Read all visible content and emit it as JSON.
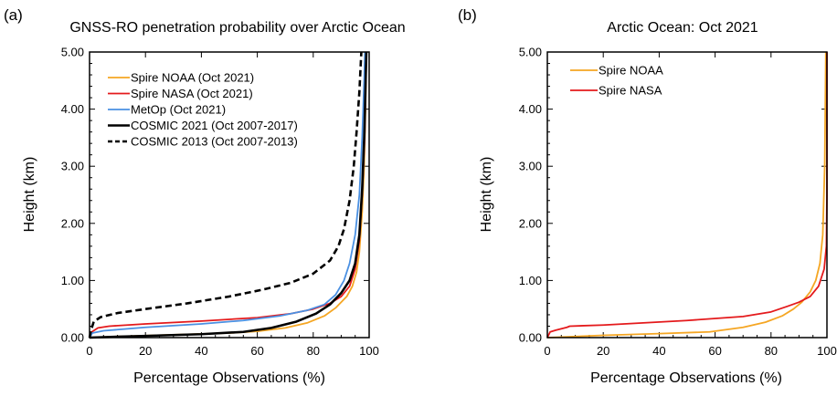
{
  "chart_data": [
    {
      "panel_label": "(a)",
      "type": "line",
      "title": "GNSS-RO penetration probability over Arctic Ocean",
      "xlabel": "Percentage Observations (%)",
      "ylabel": "Height (km)",
      "xlim": [
        0,
        100
      ],
      "ylim": [
        0,
        5
      ],
      "x_ticks": [
        "0",
        "20",
        "40",
        "60",
        "80",
        "100"
      ],
      "y_ticks": [
        "0.00",
        "1.00",
        "2.00",
        "3.00",
        "4.00",
        "5.00"
      ],
      "legend_position": "top-left",
      "series": [
        {
          "name": "Spire NOAA (Oct 2021)",
          "color": "#f5a623",
          "dash": false,
          "thick": false,
          "points": [
            [
              0,
              0
            ],
            [
              10,
              0.02
            ],
            [
              30,
              0.05
            ],
            [
              50,
              0.08
            ],
            [
              60,
              0.11
            ],
            [
              70,
              0.17
            ],
            [
              78,
              0.26
            ],
            [
              84,
              0.38
            ],
            [
              88,
              0.52
            ],
            [
              92,
              0.72
            ],
            [
              94,
              0.9
            ],
            [
              95.5,
              1.15
            ],
            [
              96.5,
              1.5
            ],
            [
              97.5,
              2.2
            ],
            [
              98.2,
              3.0
            ],
            [
              98.7,
              4.0
            ],
            [
              99,
              5.0
            ]
          ]
        },
        {
          "name": "Spire NASA (Oct 2021)",
          "color": "#e41a1c",
          "dash": false,
          "thick": false,
          "points": [
            [
              0,
              0
            ],
            [
              0.8,
              0.1
            ],
            [
              3,
              0.17
            ],
            [
              7,
              0.2
            ],
            [
              20,
              0.24
            ],
            [
              40,
              0.29
            ],
            [
              60,
              0.35
            ],
            [
              72,
              0.42
            ],
            [
              80,
              0.5
            ],
            [
              86,
              0.6
            ],
            [
              90,
              0.72
            ],
            [
              93,
              0.9
            ],
            [
              95,
              1.2
            ],
            [
              96.5,
              1.7
            ],
            [
              97.5,
              2.5
            ],
            [
              98.4,
              3.5
            ],
            [
              99,
              5.0
            ]
          ]
        },
        {
          "name": "MetOp (Oct 2021)",
          "color": "#4a90e2",
          "dash": false,
          "thick": false,
          "points": [
            [
              0,
              0
            ],
            [
              1,
              0.08
            ],
            [
              5,
              0.12
            ],
            [
              20,
              0.18
            ],
            [
              40,
              0.24
            ],
            [
              55,
              0.3
            ],
            [
              68,
              0.38
            ],
            [
              78,
              0.48
            ],
            [
              84,
              0.58
            ],
            [
              88,
              0.75
            ],
            [
              91,
              1.0
            ],
            [
              93,
              1.3
            ],
            [
              95,
              1.8
            ],
            [
              96.5,
              2.5
            ],
            [
              97.5,
              3.5
            ],
            [
              98.2,
              4.5
            ],
            [
              98.5,
              5.0
            ]
          ]
        },
        {
          "name": "COSMIC 2021 (Oct 2007-2017)",
          "color": "#000000",
          "dash": false,
          "thick": true,
          "points": [
            [
              0,
              0
            ],
            [
              20,
              0.03
            ],
            [
              40,
              0.06
            ],
            [
              55,
              0.1
            ],
            [
              65,
              0.17
            ],
            [
              74,
              0.28
            ],
            [
              81,
              0.42
            ],
            [
              86,
              0.58
            ],
            [
              90,
              0.78
            ],
            [
              93,
              1.0
            ],
            [
              95,
              1.3
            ],
            [
              96.5,
              1.8
            ],
            [
              97.5,
              2.6
            ],
            [
              98.3,
              3.6
            ],
            [
              99,
              5.0
            ]
          ]
        },
        {
          "name": "COSMIC 2013 (Oct 2007-2013)",
          "color": "#000000",
          "dash": true,
          "thick": true,
          "points": [
            [
              0,
              0
            ],
            [
              0.5,
              0.12
            ],
            [
              1.5,
              0.28
            ],
            [
              4,
              0.36
            ],
            [
              10,
              0.43
            ],
            [
              20,
              0.5
            ],
            [
              35,
              0.6
            ],
            [
              50,
              0.72
            ],
            [
              62,
              0.84
            ],
            [
              72,
              0.96
            ],
            [
              80,
              1.12
            ],
            [
              86,
              1.35
            ],
            [
              89,
              1.6
            ],
            [
              91,
              1.9
            ],
            [
              93,
              2.4
            ],
            [
              94.5,
              3.0
            ],
            [
              95.5,
              3.6
            ],
            [
              96.5,
              4.3
            ],
            [
              97.2,
              5.0
            ]
          ]
        }
      ]
    },
    {
      "panel_label": "(b)",
      "type": "line",
      "title": "Arctic Ocean: Oct 2021",
      "xlabel": "Percentage Observations (%)",
      "ylabel": "Height (km)",
      "xlim": [
        0,
        100
      ],
      "ylim": [
        0,
        5
      ],
      "x_ticks": [
        "0",
        "20",
        "40",
        "60",
        "80",
        "100"
      ],
      "y_ticks": [
        "0.00",
        "1.00",
        "2.00",
        "3.00",
        "4.00",
        "5.00"
      ],
      "legend_position": "top-left",
      "series": [
        {
          "name": "Spire NOAA",
          "color": "#f5a623",
          "dash": false,
          "thick": false,
          "points": [
            [
              0,
              0
            ],
            [
              20,
              0.04
            ],
            [
              40,
              0.07
            ],
            [
              58,
              0.1
            ],
            [
              70,
              0.18
            ],
            [
              78,
              0.27
            ],
            [
              84,
              0.38
            ],
            [
              88,
              0.5
            ],
            [
              91,
              0.62
            ],
            [
              94,
              0.8
            ],
            [
              96,
              1.0
            ],
            [
              97.5,
              1.3
            ],
            [
              98.5,
              1.8
            ],
            [
              99.2,
              3.0
            ],
            [
              99.6,
              5.0
            ]
          ]
        },
        {
          "name": "Spire NASA",
          "color": "#e41a1c",
          "dash": false,
          "thick": false,
          "points": [
            [
              0,
              0
            ],
            [
              1,
              0.1
            ],
            [
              3,
              0.13
            ],
            [
              7,
              0.18
            ],
            [
              8,
              0.2
            ],
            [
              20,
              0.22
            ],
            [
              50,
              0.3
            ],
            [
              70,
              0.37
            ],
            [
              80,
              0.45
            ],
            [
              86,
              0.55
            ],
            [
              90,
              0.62
            ],
            [
              94,
              0.72
            ],
            [
              97,
              0.9
            ],
            [
              99,
              1.2
            ],
            [
              99.8,
              1.6
            ],
            [
              100,
              2.5
            ],
            [
              100,
              5.0
            ]
          ]
        }
      ]
    }
  ]
}
